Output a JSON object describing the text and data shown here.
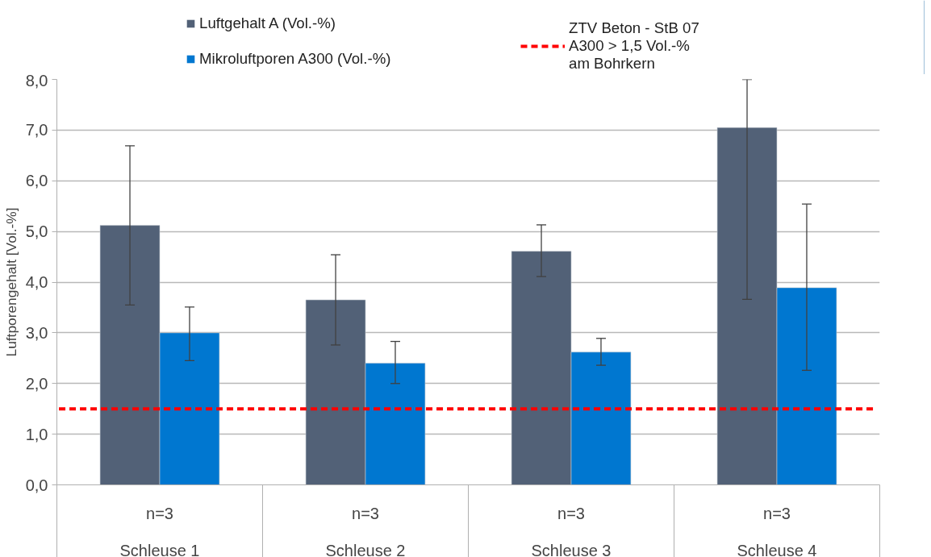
{
  "chart_data": {
    "type": "bar",
    "ylabel": "Luftporengehalt [Vol.-%]",
    "categories": [
      "Schleuse 1",
      "Schleuse 2",
      "Schleuse 3",
      "Schleuse 4"
    ],
    "series": [
      {
        "name": "Luftgehalt A (Vol.-%)",
        "color": "#526177",
        "values": [
          5.12,
          3.65,
          4.61,
          7.05
        ],
        "errors": [
          [
            3.55,
            6.69
          ],
          [
            2.76,
            4.54
          ],
          [
            4.11,
            5.13
          ],
          [
            3.66,
            8.0
          ]
        ]
      },
      {
        "name": "Mikroluftporen A300 (Vol.-%)",
        "color": "#0077d0",
        "values": [
          3.0,
          2.4,
          2.62,
          3.89
        ],
        "errors": [
          [
            2.45,
            3.51
          ],
          [
            2.0,
            2.83
          ],
          [
            2.36,
            2.89
          ],
          [
            2.26,
            5.54
          ]
        ]
      }
    ],
    "ylim": [
      0,
      8
    ],
    "yticks": [
      {
        "value": 0,
        "label": "0,0"
      },
      {
        "value": 1,
        "label": "1,0"
      },
      {
        "value": 2,
        "label": "2,0"
      },
      {
        "value": 3,
        "label": "3,0"
      },
      {
        "value": 4,
        "label": "4,0"
      },
      {
        "value": 5,
        "label": "5,0"
      },
      {
        "value": 6,
        "label": "6,0"
      },
      {
        "value": 7,
        "label": "7,0"
      },
      {
        "value": 8,
        "label": "8,0"
      }
    ],
    "ref_lines": [
      {
        "axis": "y",
        "value": 1.5,
        "label": "ZTV Beton - StB 07\nA300 > 1,5 Vol.-%\nam Bohrkern",
        "color": "#ff0000",
        "line_style": "dashed"
      }
    ],
    "annotations": [
      "n=3",
      "n=3",
      "n=3",
      "n=3"
    ],
    "grid": "y",
    "legend": "top"
  }
}
